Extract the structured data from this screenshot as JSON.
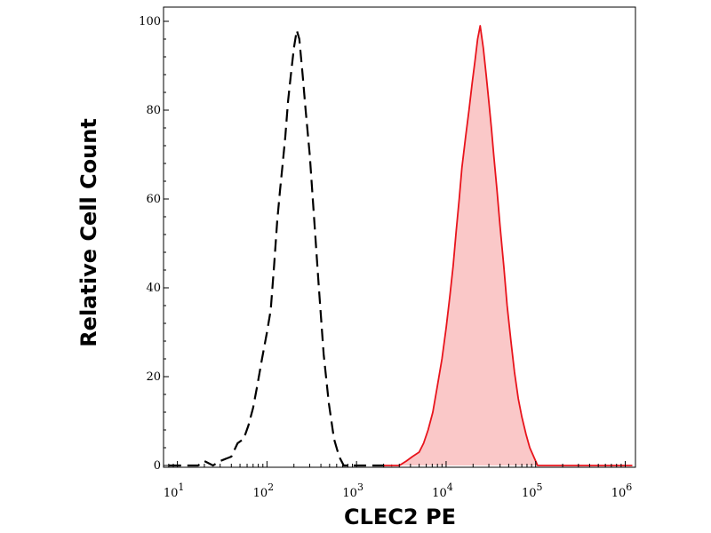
{
  "chart_data": {
    "type": "area",
    "xlabel": "CLEC2 PE",
    "ylabel": "Relative Cell Count",
    "x_scale": "log",
    "xlim": [
      7,
      1300000
    ],
    "ylim": [
      0,
      100
    ],
    "y_ticks": [
      0,
      20,
      40,
      60,
      80,
      100
    ],
    "x_ticks": [
      {
        "value": 10,
        "base": "10",
        "exp": "1"
      },
      {
        "value": 100,
        "base": "10",
        "exp": "2"
      },
      {
        "value": 1000,
        "base": "10",
        "exp": "3"
      },
      {
        "value": 10000,
        "base": "10",
        "exp": "4"
      },
      {
        "value": 100000,
        "base": "10",
        "exp": "5"
      },
      {
        "value": 1000000,
        "base": "10",
        "exp": "6"
      }
    ],
    "grid": false,
    "series": [
      {
        "style": "dashed-outline",
        "color": "#000000",
        "points": [
          [
            8,
            0
          ],
          [
            17,
            0
          ],
          [
            20,
            1
          ],
          [
            25,
            0
          ],
          [
            30,
            1
          ],
          [
            40,
            2
          ],
          [
            47,
            5
          ],
          [
            55,
            6
          ],
          [
            62,
            9
          ],
          [
            70,
            13
          ],
          [
            78,
            18
          ],
          [
            88,
            24
          ],
          [
            100,
            30
          ],
          [
            110,
            35
          ],
          [
            120,
            45
          ],
          [
            130,
            55
          ],
          [
            140,
            62
          ],
          [
            150,
            68
          ],
          [
            160,
            74
          ],
          [
            172,
            82
          ],
          [
            185,
            88
          ],
          [
            200,
            94
          ],
          [
            215,
            98
          ],
          [
            230,
            96
          ],
          [
            250,
            88
          ],
          [
            270,
            80
          ],
          [
            300,
            70
          ],
          [
            340,
            54
          ],
          [
            380,
            40
          ],
          [
            430,
            25
          ],
          [
            490,
            14
          ],
          [
            560,
            6
          ],
          [
            640,
            2
          ],
          [
            720,
            0
          ],
          [
            1000,
            0
          ],
          [
            2500,
            0
          ]
        ]
      },
      {
        "style": "filled",
        "color": "#e8141c",
        "fill": "#fac8c8",
        "points": [
          [
            2000,
            0
          ],
          [
            3000,
            0
          ],
          [
            3600,
            1
          ],
          [
            4200,
            2
          ],
          [
            5000,
            3
          ],
          [
            5600,
            5
          ],
          [
            6300,
            8
          ],
          [
            7100,
            12
          ],
          [
            8000,
            18
          ],
          [
            9000,
            24
          ],
          [
            10000,
            31
          ],
          [
            11000,
            38
          ],
          [
            12000,
            45
          ],
          [
            13000,
            53
          ],
          [
            14000,
            60
          ],
          [
            15000,
            67
          ],
          [
            16500,
            74
          ],
          [
            18000,
            80
          ],
          [
            19500,
            86
          ],
          [
            21000,
            91
          ],
          [
            22500,
            96
          ],
          [
            24000,
            99
          ],
          [
            26000,
            94
          ],
          [
            28000,
            88
          ],
          [
            30000,
            82
          ],
          [
            32000,
            76
          ],
          [
            34000,
            70
          ],
          [
            37000,
            62
          ],
          [
            40000,
            54
          ],
          [
            44000,
            45
          ],
          [
            48000,
            36
          ],
          [
            53000,
            28
          ],
          [
            58000,
            21
          ],
          [
            64000,
            15
          ],
          [
            70000,
            11
          ],
          [
            78000,
            7
          ],
          [
            86000,
            4
          ],
          [
            95000,
            2
          ],
          [
            105000,
            0
          ],
          [
            150000,
            0
          ],
          [
            1200000,
            0
          ]
        ]
      }
    ]
  }
}
